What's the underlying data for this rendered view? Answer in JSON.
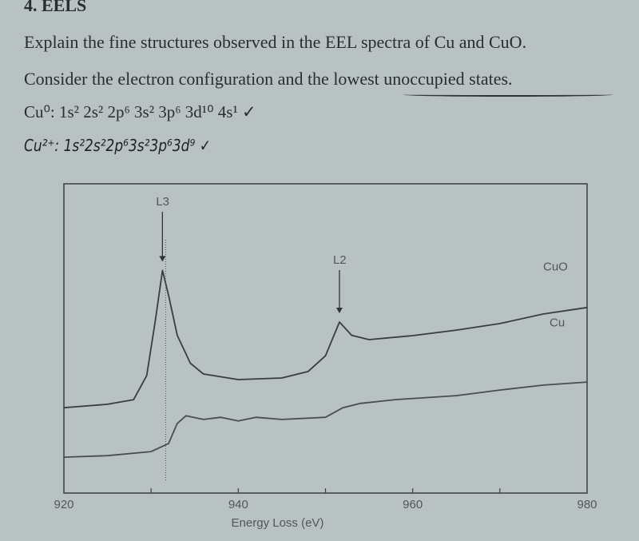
{
  "question": {
    "heading": "4. EELS",
    "line1": "Explain the fine structures observed in the EEL spectra of Cu and CuO.",
    "line2": "Consider the electron configuration and the lowest unoccupied states.",
    "cu0_config": "Cu⁰: 1s² 2s² 2p⁶ 3s² 3p⁶ 3d¹⁰ 4s¹ ✓",
    "cu2_config_handwritten": "Cu²⁺: 1s²2s²2p⁶3s²3p⁶3d⁹ ✓"
  },
  "chart_data": {
    "type": "line",
    "title": "",
    "xlabel": "Energy Loss (eV)",
    "ylabel": "",
    "xlim": [
      920,
      980
    ],
    "ylim": [
      0,
      100
    ],
    "xticks": [
      920,
      940,
      960,
      980
    ],
    "grid": false,
    "annotations": [
      {
        "text": "L3",
        "x": 931.3
      },
      {
        "text": "L2",
        "x": 951.6
      }
    ],
    "series": [
      {
        "name": "CuO",
        "color": "#3a3d3f",
        "x": [
          920,
          925,
          928,
          929.5,
          930.5,
          931.3,
          932,
          933,
          934.5,
          936,
          940,
          945,
          948,
          950,
          951.6,
          953,
          955,
          960,
          965,
          970,
          975,
          980
        ],
        "y": [
          27.6,
          28.7,
          30.2,
          38,
          56,
          72,
          64,
          51,
          42,
          38.5,
          36.7,
          37.2,
          39.3,
          44.4,
          55.3,
          51,
          49.6,
          50.9,
          52.7,
          54.8,
          57.9,
          60
        ]
      },
      {
        "name": "Cu",
        "color": "#4a4d4f",
        "x": [
          920,
          925,
          930,
          932,
          933,
          934,
          936,
          938,
          940,
          942,
          945,
          950,
          952,
          954,
          958,
          965,
          970,
          975,
          980
        ],
        "y": [
          11.6,
          12.1,
          13.4,
          16,
          22.5,
          25,
          23.8,
          24.5,
          23.3,
          24.5,
          23.8,
          24.5,
          27.6,
          29,
          30.2,
          31.5,
          33.3,
          34.9,
          35.9
        ]
      }
    ]
  }
}
